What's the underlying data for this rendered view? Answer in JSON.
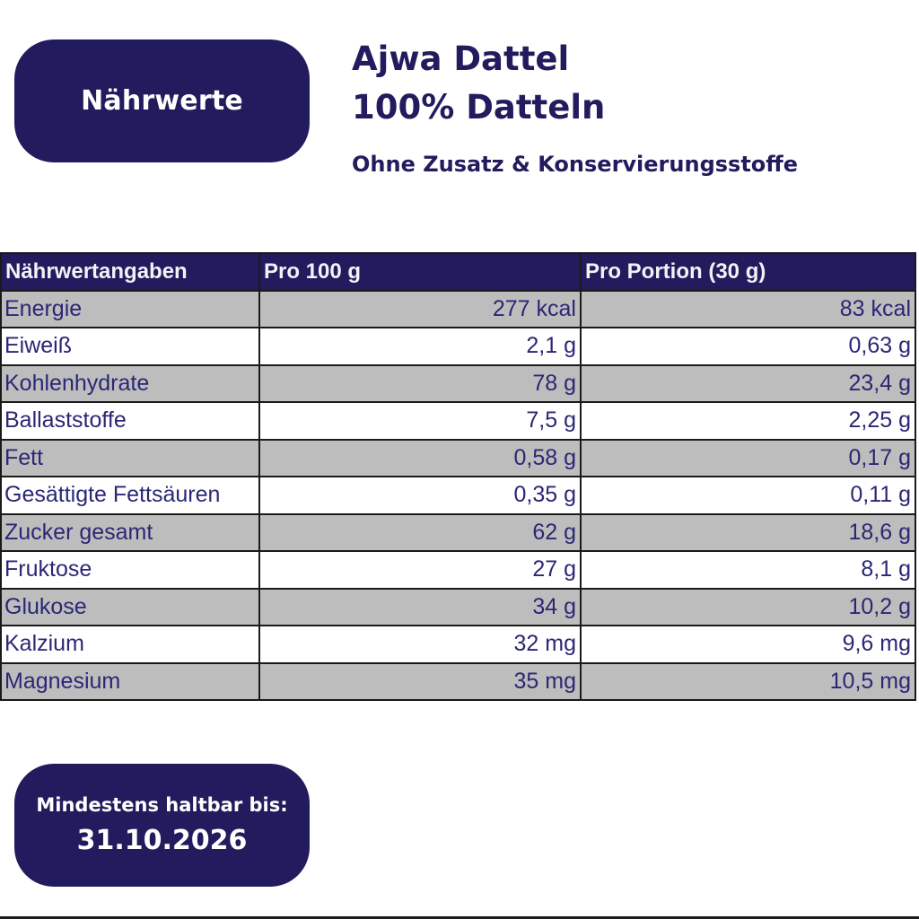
{
  "badge_top": {
    "label": "Nährwerte"
  },
  "header": {
    "title_line1": "Ajwa Dattel",
    "title_line2": "100% Datteln",
    "subtitle": "Ohne Zusatz & Konservierungsstoffe"
  },
  "table": {
    "columns": [
      "Nährwertangaben",
      "Pro 100 g",
      "Pro Portion (30 g)"
    ],
    "rows": [
      {
        "name": "Energie",
        "per100": "277 kcal",
        "portion": "83 kcal"
      },
      {
        "name": "Eiweiß",
        "per100": "2,1 g",
        "portion": "0,63 g"
      },
      {
        "name": "Kohlenhydrate",
        "per100": "78 g",
        "portion": "23,4 g"
      },
      {
        "name": "Ballaststoffe",
        "per100": "7,5 g",
        "portion": "2,25 g"
      },
      {
        "name": "Fett",
        "per100": "0,58 g",
        "portion": "0,17 g"
      },
      {
        "name": "Gesättigte Fettsäuren",
        "per100": "0,35 g",
        "portion": "0,11 g"
      },
      {
        "name": "Zucker gesamt",
        "per100": "62 g",
        "portion": "18,6 g"
      },
      {
        "name": "Fruktose",
        "per100": "27 g",
        "portion": "8,1 g"
      },
      {
        "name": "Glukose",
        "per100": "34 g",
        "portion": "10,2 g"
      },
      {
        "name": "Kalzium",
        "per100": "32 mg",
        "portion": "9,6 mg"
      },
      {
        "name": "Magnesium",
        "per100": "35 mg",
        "portion": "10,5 mg"
      }
    ]
  },
  "badge_bottom": {
    "caption": "Mindestens haltbar bis:",
    "date": "31.10.2026"
  },
  "colors": {
    "brand_navy": "#221c5e",
    "row_gray": "#bdbdbd",
    "text_navy": "#2a2775"
  }
}
